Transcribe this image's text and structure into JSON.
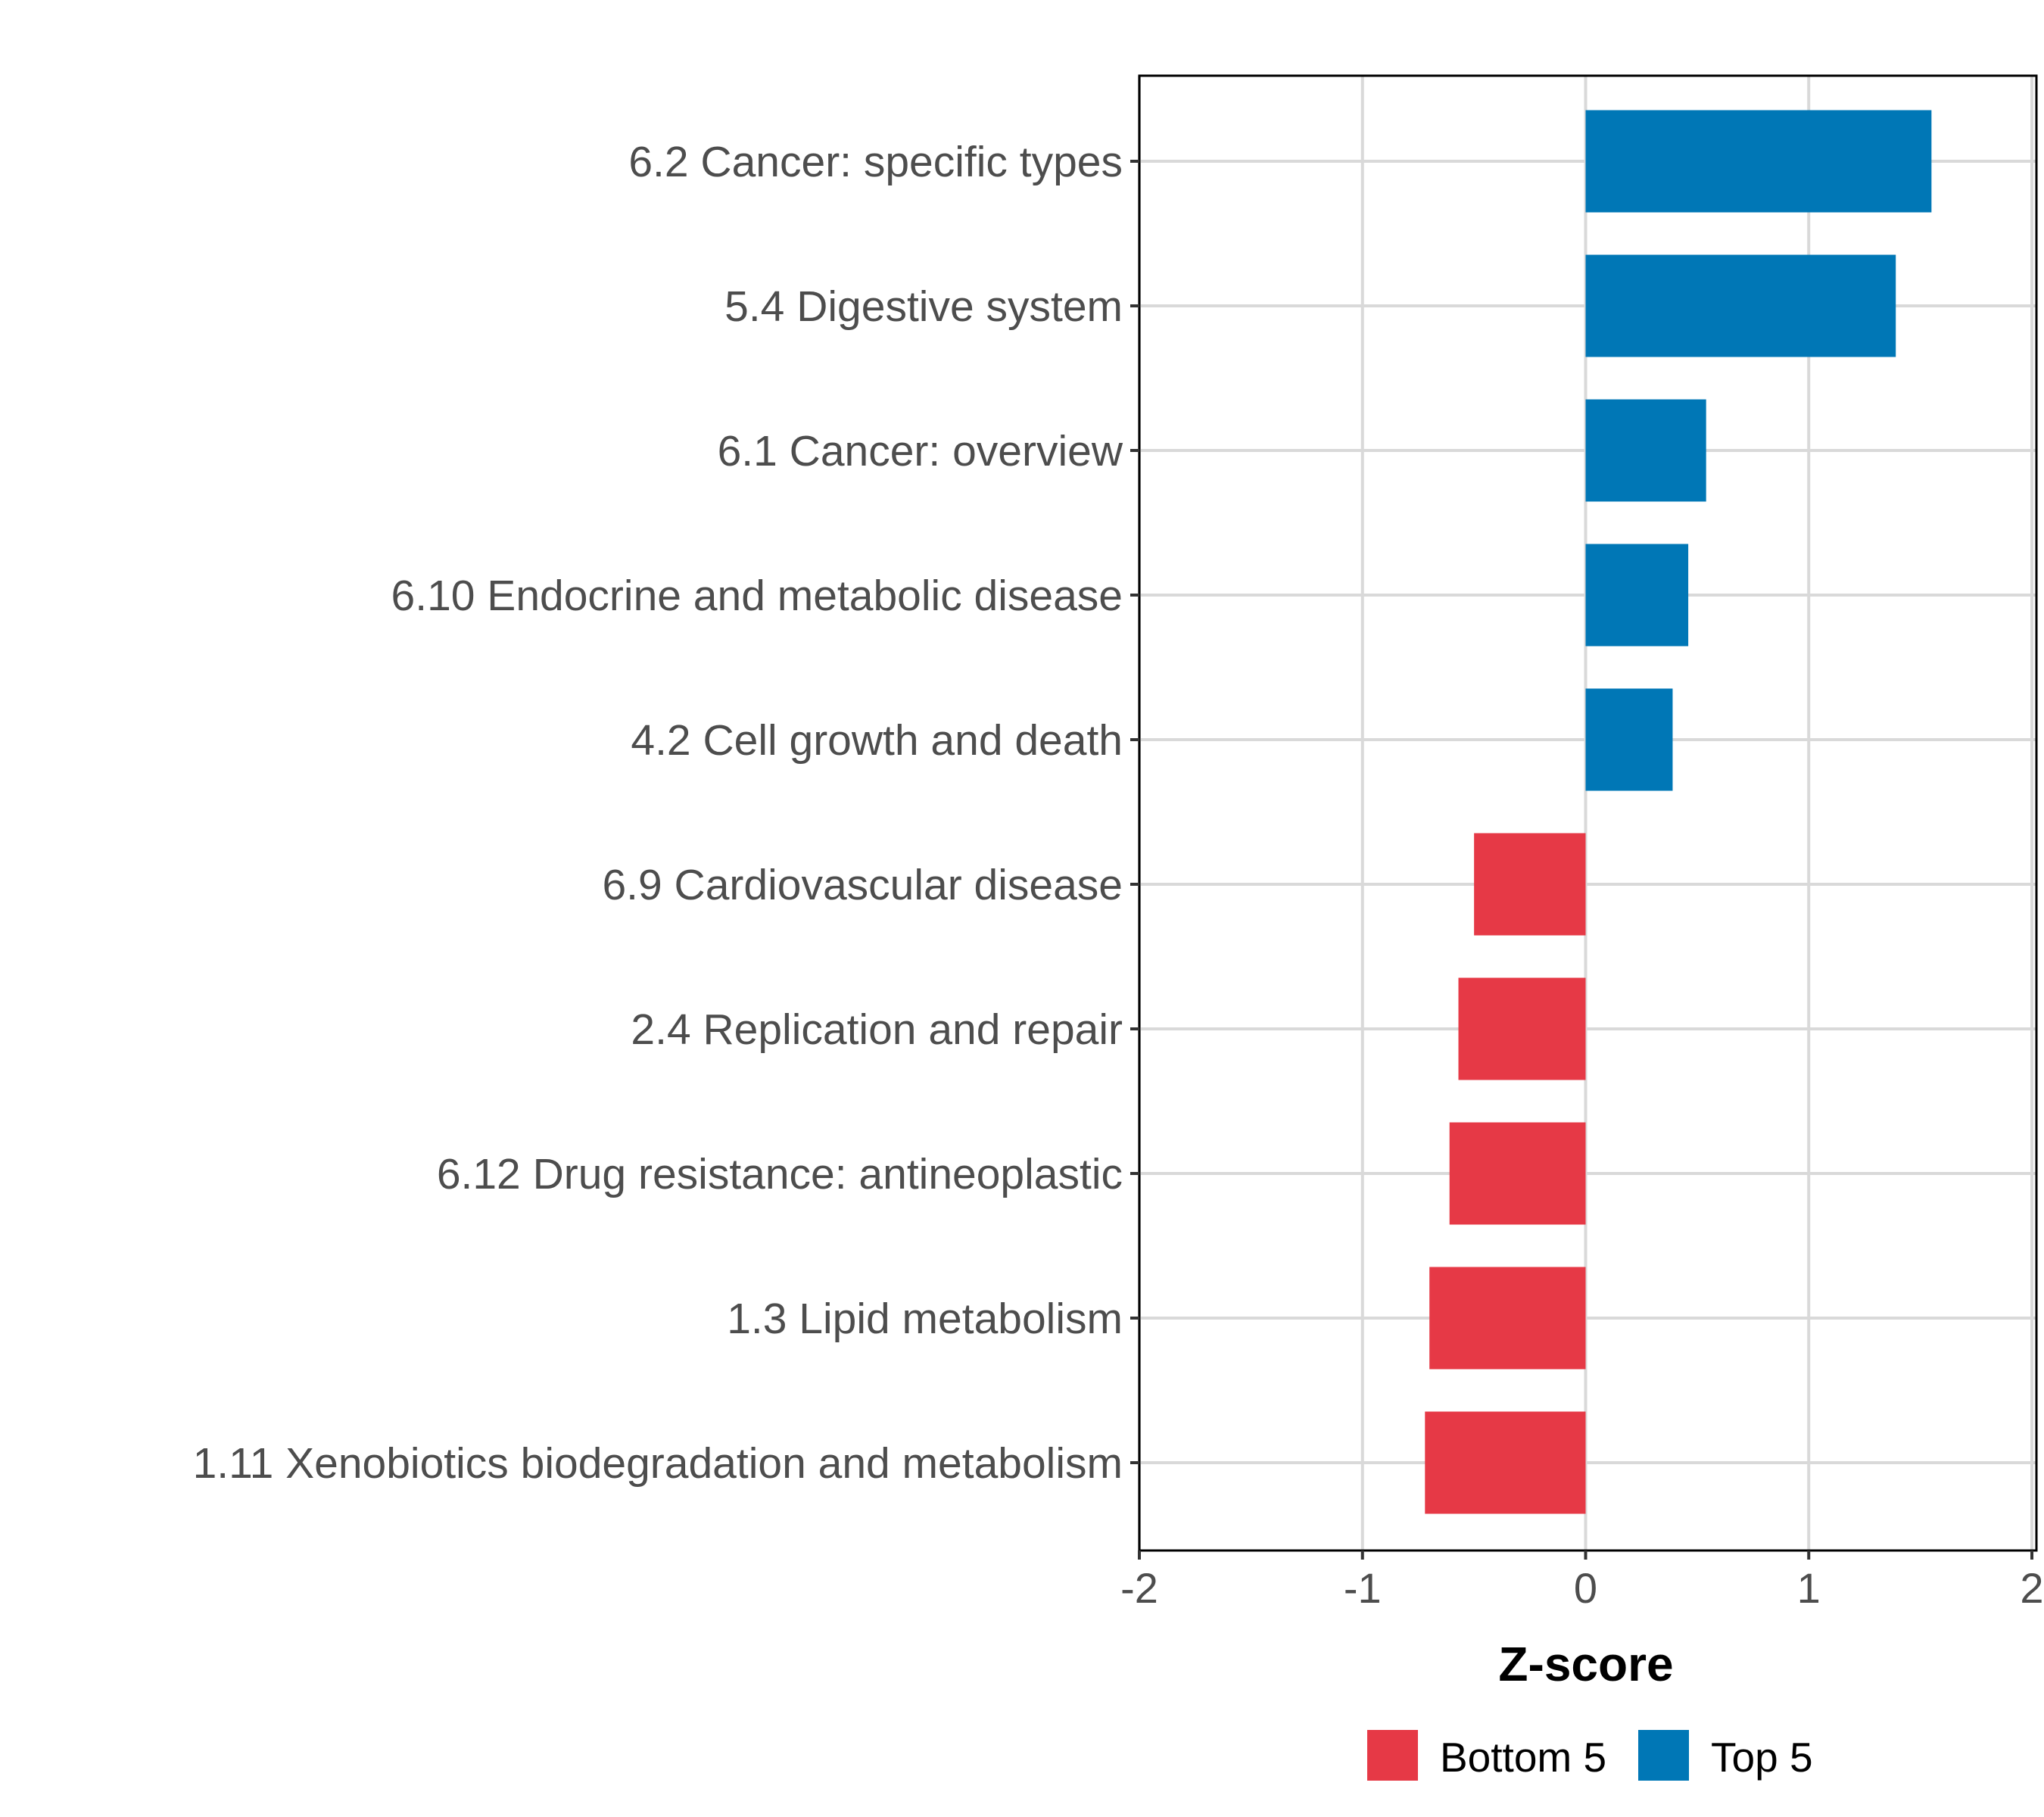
{
  "chart_data": {
    "type": "bar",
    "orientation": "horizontal",
    "title": "",
    "xlabel": "Z-score",
    "ylabel": "",
    "xlim": [
      -2,
      2
    ],
    "xticks": [
      "-2",
      "-1",
      "0",
      "1",
      "2"
    ],
    "xtick_values": [
      -2,
      -1,
      0,
      1,
      2
    ],
    "grid": true,
    "categories": [
      "6.2 Cancer: specific types",
      "5.4 Digestive system",
      "6.1 Cancer: overview",
      "6.10 Endocrine and metabolic disease",
      "4.2 Cell growth and death",
      "6.9 Cardiovascular disease",
      "2.4 Replication and repair",
      "6.12 Drug resistance: antineoplastic",
      "1.3 Lipid metabolism",
      "1.11 Xenobiotics biodegradation and metabolism"
    ],
    "values": [
      1.55,
      1.39,
      0.54,
      0.46,
      0.39,
      -0.5,
      -0.57,
      -0.61,
      -0.7,
      -0.72
    ],
    "groups": [
      "Top 5",
      "Top 5",
      "Top 5",
      "Top 5",
      "Top 5",
      "Bottom 5",
      "Bottom 5",
      "Bottom 5",
      "Bottom 5",
      "Bottom 5"
    ],
    "legend": {
      "placement": "bottom",
      "entries": [
        {
          "label": "Bottom 5",
          "color": "#E63946"
        },
        {
          "label": "Top 5",
          "color": "#0077B6"
        }
      ]
    }
  }
}
